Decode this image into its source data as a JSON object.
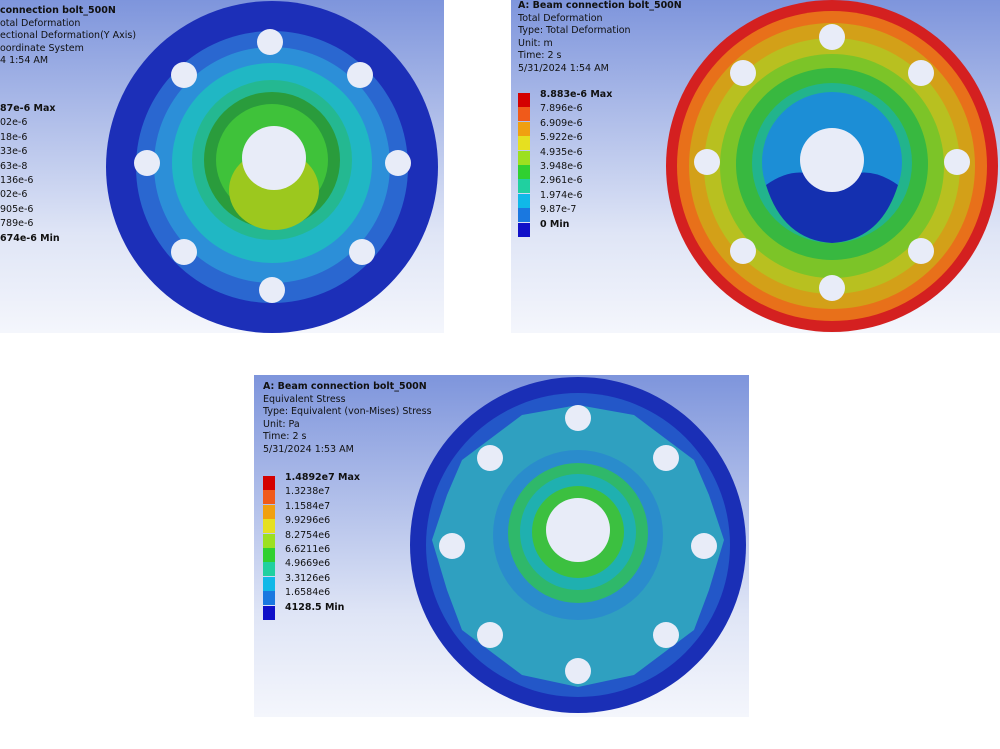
{
  "panels": [
    {
      "header": [
        "connection bolt_500N",
        "otal Deformation",
        "ectional Deformation(Y Axis)",
        "oordinate System",
        "4 1:54 AM"
      ],
      "legend": [
        "87e-6 Max",
        "02e-6",
        "18e-6",
        "33e-6",
        "63e-8",
        "136e-6",
        "02e-6",
        "905e-6",
        "789e-6",
        "674e-6 Min"
      ]
    },
    {
      "header": [
        "A: Beam connection bolt_500N",
        "Total Deformation",
        "Type: Total Deformation",
        "Unit: m",
        "Time: 2 s",
        "5/31/2024 1:54 AM"
      ],
      "legend": [
        "8.883e-6 Max",
        "7.896e-6",
        "6.909e-6",
        "5.922e-6",
        "4.935e-6",
        "3.948e-6",
        "2.961e-6",
        "1.974e-6",
        "9.87e-7",
        "0 Min"
      ]
    },
    {
      "header": [
        "A: Beam connection bolt_500N",
        "Equivalent Stress",
        "Type: Equivalent (von-Mises) Stress",
        "Unit: Pa",
        "Time: 2 s",
        "5/31/2024 1:53 AM"
      ],
      "legend": [
        "1.4892e7 Max",
        "1.3238e7",
        "1.1584e7",
        "9.9296e6",
        "8.2754e6",
        "6.6211e6",
        "4.9669e6",
        "3.3126e6",
        "1.6584e6",
        "4128.5 Min"
      ]
    }
  ]
}
